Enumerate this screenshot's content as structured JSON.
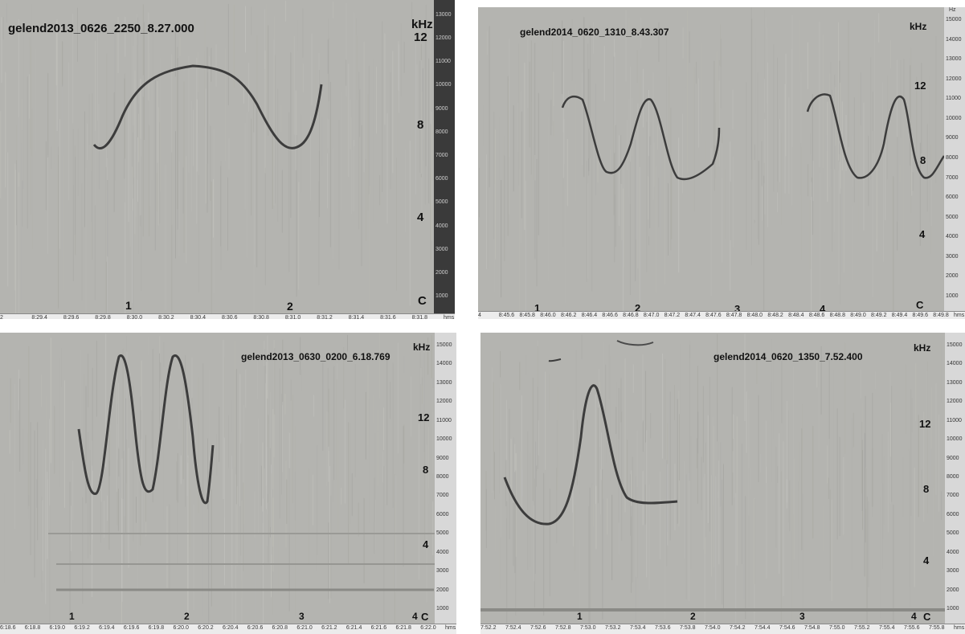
{
  "panels": [
    {
      "title": "gelend2013_0626_2250_8.27.000",
      "khz": "kHz",
      "khz_ticks": [
        "12",
        "8",
        "4",
        "C"
      ],
      "segments": [
        "1",
        "2"
      ],
      "freq_ticks": [
        "13000",
        "12000",
        "11000",
        "10000",
        "9000",
        "8000",
        "7000",
        "6000",
        "5000",
        "4000",
        "3000",
        "2000",
        "1000"
      ],
      "time_ticks": [
        "2",
        "8:29.4",
        "8:29.6",
        "8:29.8",
        "8:30.0",
        "8:30.2",
        "8:30.4",
        "8:30.6",
        "8:30.8",
        "8:31.0",
        "8:31.2",
        "8:31.4",
        "8:31.6",
        "8:31.8",
        "hms"
      ]
    },
    {
      "title": "gelend2014_0620_1310_8.43.307",
      "khz": "kHz",
      "khz_ticks": [
        "12",
        "8",
        "4",
        "C"
      ],
      "segments": [
        "1",
        "2",
        "3",
        "4"
      ],
      "freq_unit": "Hz",
      "freq_ticks": [
        "15000",
        "14000",
        "13000",
        "12000",
        "11000",
        "10000",
        "9000",
        "8000",
        "7000",
        "6000",
        "5000",
        "4000",
        "3000",
        "2000",
        "1000"
      ],
      "time_ticks": [
        "4",
        "8:45.6",
        "8:45.8",
        "8:46.0",
        "8:46.2",
        "8:46.4",
        "8:46.6",
        "8:46.8",
        "8:47.0",
        "8:47.2",
        "8:47.4",
        "8:47.6",
        "8:47.8",
        "8:48.0",
        "8:48.2",
        "8:48.4",
        "8:48.6",
        "8:48.8",
        "8:49.0",
        "8:49.2",
        "8:49.4",
        "8:49.6",
        "8:49.8",
        "hms"
      ]
    },
    {
      "title": "gelend2013_0630_0200_6.18.769",
      "khz": "kHz",
      "khz_ticks": [
        "12",
        "8",
        "4",
        "C"
      ],
      "segments": [
        "1",
        "2",
        "3",
        "4"
      ],
      "freq_ticks": [
        "15000",
        "14000",
        "13000",
        "12000",
        "11000",
        "10000",
        "9000",
        "8000",
        "7000",
        "6000",
        "5000",
        "4000",
        "3000",
        "2000",
        "1000"
      ],
      "time_ticks": [
        "6:18.6",
        "6:18.8",
        "6:19.0",
        "6:19.2",
        "6:19.4",
        "6:19.6",
        "6:19.8",
        "6:20.0",
        "6:20.2",
        "6:20.4",
        "6:20.6",
        "6:20.8",
        "6:21.0",
        "6:21.2",
        "6:21.4",
        "6:21.6",
        "6:21.8",
        "6:22.0",
        "hms"
      ]
    },
    {
      "title": "gelend2014_0620_1350_7.52.400",
      "khz": "kHz",
      "khz_ticks": [
        "12",
        "8",
        "4",
        "C"
      ],
      "segments": [
        "1",
        "2",
        "3",
        "4"
      ],
      "freq_ticks": [
        "15000",
        "14000",
        "13000",
        "12000",
        "11000",
        "10000",
        "9000",
        "8000",
        "7000",
        "6000",
        "5000",
        "4000",
        "3000",
        "2000",
        "1000"
      ],
      "time_ticks": [
        "7:52.2",
        "7:52.4",
        "7:52.6",
        "7:52.8",
        "7:53.0",
        "7:53.2",
        "7:53.4",
        "7:53.6",
        "7:53.8",
        "7:54.0",
        "7:54.2",
        "7:54.4",
        "7:54.6",
        "7:54.8",
        "7:55.0",
        "7:55.2",
        "7:55.4",
        "7:55.6",
        "7:55.8",
        "hms"
      ]
    }
  ],
  "colors": {
    "spectrogram_bg": "#b4b4b0",
    "trace": "#3c3c3c",
    "axis_bg": "#3a3a3a",
    "axis_text": "#cfcfcf"
  }
}
